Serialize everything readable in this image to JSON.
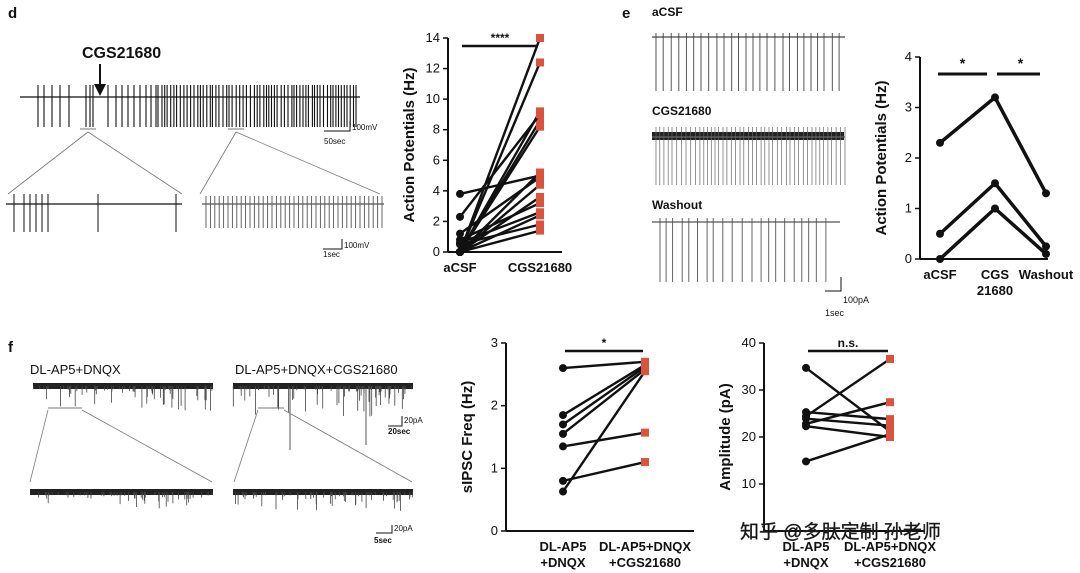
{
  "panels": {
    "d": {
      "letter": "d",
      "drug_label": "CGS21680",
      "scale1_v": "100mV",
      "scale1_t": "50sec",
      "scale2_v": "100mV",
      "scale2_t": "1sec"
    },
    "e": {
      "letter": "e",
      "trace_labels": [
        "aCSF",
        "CGS21680",
        "Washout"
      ],
      "scale_i": "100pA",
      "scale_t": "1sec"
    },
    "f": {
      "letter": "f",
      "cond1": "DL-AP5+DNQX",
      "cond2": "DL-AP5+DNQX+CGS21680",
      "scale1_i": "20pA",
      "scale1_t": "20sec",
      "scale2_i": "20pA",
      "scale2_t": "5sec"
    }
  },
  "watermark": "知乎 @多肽定制 孙老师",
  "colors": {
    "line": "#111111",
    "marker": "#d9533f"
  },
  "chart_data": [
    {
      "id": "d-chart",
      "type": "line",
      "ylabel": "Action Potentials (Hz)",
      "categories": [
        "aCSF",
        "CGS21680"
      ],
      "ylim": [
        0,
        14
      ],
      "yticks": [
        "0",
        "2",
        "4",
        "6",
        "8",
        "10",
        "12",
        "14"
      ],
      "significance": "****",
      "pairs": [
        [
          0,
          14.0
        ],
        [
          0,
          12.4
        ],
        [
          0,
          9.2
        ],
        [
          0,
          8.6
        ],
        [
          0,
          8.2
        ],
        [
          0,
          5.2
        ],
        [
          0,
          4.4
        ],
        [
          0,
          3.6
        ],
        [
          0,
          2.4
        ],
        [
          0,
          1.4
        ],
        [
          0.5,
          1.8
        ],
        [
          0.6,
          2.6
        ],
        [
          0.8,
          3.2
        ],
        [
          1.2,
          4.9
        ],
        [
          2.3,
          9.0
        ],
        [
          3.8,
          5.0
        ]
      ]
    },
    {
      "id": "e-chart",
      "type": "line",
      "ylabel": "Action Potentials (Hz)",
      "categories": [
        "aCSF",
        "CGS",
        "Washout"
      ],
      "category_sublabels": [
        "",
        "21680",
        ""
      ],
      "ylim": [
        0,
        4
      ],
      "yticks": [
        "0",
        "1",
        "2",
        "3",
        "4"
      ],
      "significance": [
        "*",
        "*"
      ],
      "series": [
        [
          2.3,
          3.2,
          1.3
        ],
        [
          0.5,
          1.5,
          0.25
        ],
        [
          0.0,
          1.0,
          0.1
        ]
      ]
    },
    {
      "id": "f-freq",
      "type": "line",
      "ylabel": "sIPSC Freq (Hz)",
      "categories": [
        "DL-AP5",
        "DL-AP5+DNQX"
      ],
      "category_sublabels": [
        "+DNQX",
        "+CGS21680"
      ],
      "ylim": [
        0,
        3
      ],
      "yticks": [
        "0",
        "1",
        "2",
        "3"
      ],
      "significance": "*",
      "pairs": [
        [
          2.6,
          2.7
        ],
        [
          1.85,
          2.65
        ],
        [
          1.7,
          2.62
        ],
        [
          1.55,
          2.58
        ],
        [
          1.35,
          1.57
        ],
        [
          0.8,
          1.1
        ],
        [
          0.63,
          2.55
        ]
      ]
    },
    {
      "id": "f-amp",
      "type": "line",
      "ylabel": "Amplitude (pA)",
      "categories": [
        "DL-AP5",
        "DL-AP5+DNQX"
      ],
      "category_sublabels": [
        "+DNQX",
        "+CGS21680"
      ],
      "ylim": [
        0,
        40
      ],
      "yticks": [
        "10",
        "20",
        "30",
        "40"
      ],
      "significance": "n.s.",
      "pairs": [
        [
          34.7,
          21.2
        ],
        [
          25.3,
          23.8
        ],
        [
          24.4,
          36.6
        ],
        [
          23.9,
          22.4
        ],
        [
          22.8,
          27.4
        ],
        [
          22.3,
          20.0
        ],
        [
          14.8,
          20.6
        ]
      ]
    }
  ]
}
